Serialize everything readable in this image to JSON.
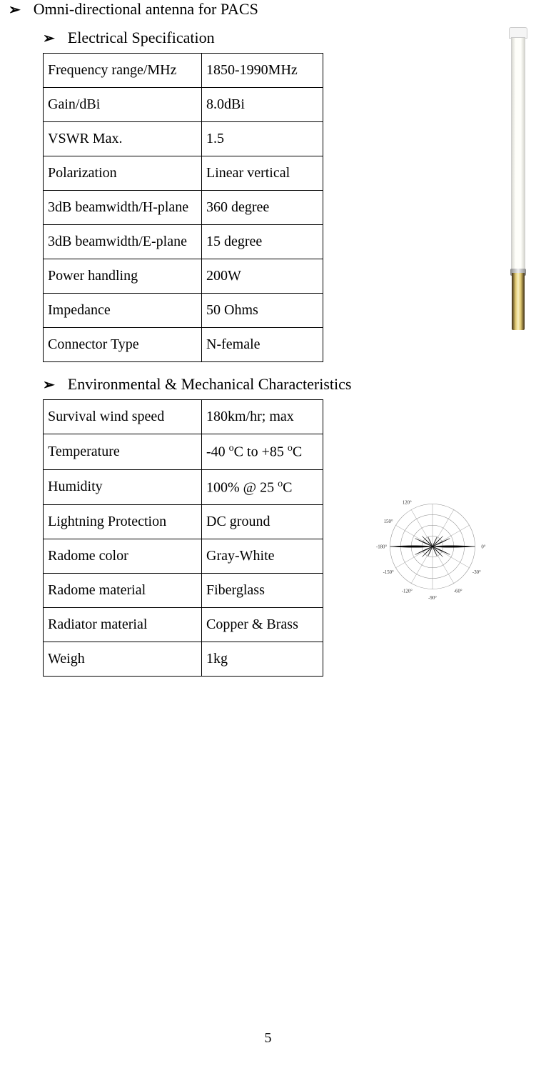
{
  "title": "Omni-directional antenna for PACS",
  "section1": {
    "heading": "Electrical Specification",
    "rows": [
      {
        "label": "Frequency range/MHz",
        "value": "1850-1990MHz"
      },
      {
        "label": "Gain/dBi",
        "value": "8.0dBi"
      },
      {
        "label": "VSWR Max.",
        "value": "1.5"
      },
      {
        "label": "Polarization",
        "value": "Linear vertical"
      },
      {
        "label": "3dB beamwidth/H-plane",
        "value": "360 degree"
      },
      {
        "label": "3dB beamwidth/E-plane",
        "value": "15 degree"
      },
      {
        "label": "Power handling",
        "value": "200W"
      },
      {
        "label": "Impedance",
        "value": "50 Ohms"
      },
      {
        "label": "Connector Type",
        "value": "N-female"
      }
    ]
  },
  "section2": {
    "heading": "Environmental & Mechanical Characteristics",
    "rows": [
      {
        "label": "Survival wind speed",
        "value": "180km/hr; max"
      },
      {
        "label": "Temperature",
        "value_html": "-40 <sup>o</sup>C to +85 <sup>o</sup>C"
      },
      {
        "label": "Humidity",
        "value_html": "100% @ 25 <sup>o</sup>C"
      },
      {
        "label": "Lightning Protection",
        "value": "DC ground"
      },
      {
        "label": "Radome color",
        "value": "Gray-White"
      },
      {
        "label": "Radome material",
        "value": "Fiberglass"
      },
      {
        "label": "Radiator material",
        "value": "Copper & Brass"
      },
      {
        "label": "Weigh",
        "value": "1kg"
      }
    ]
  },
  "page_number": "5",
  "arrow_glyph": "➢",
  "pattern_diagram": {
    "type": "polar-radiation-pattern",
    "angle_labels": [
      "0°",
      "-30°",
      "-60°",
      "-90°",
      "-120°",
      "-150°",
      "-180°",
      "150°",
      "120°"
    ],
    "label_fontsize": 8,
    "grid_rings": 4,
    "grid_color": "#888888",
    "lobe_color": "#000000",
    "background_color": "#ffffff",
    "main_lobes": [
      {
        "angle_deg": 0,
        "relative_length": 1.0,
        "width_deg": 14
      },
      {
        "angle_deg": 180,
        "relative_length": 1.0,
        "width_deg": 14
      }
    ],
    "side_lobes": [
      {
        "angle_deg": 25,
        "relative_length": 0.45
      },
      {
        "angle_deg": -25,
        "relative_length": 0.45
      },
      {
        "angle_deg": 45,
        "relative_length": 0.35
      },
      {
        "angle_deg": -45,
        "relative_length": 0.35
      },
      {
        "angle_deg": 65,
        "relative_length": 0.25
      },
      {
        "angle_deg": -65,
        "relative_length": 0.25
      },
      {
        "angle_deg": 155,
        "relative_length": 0.45
      },
      {
        "angle_deg": -155,
        "relative_length": 0.45
      },
      {
        "angle_deg": 135,
        "relative_length": 0.35
      },
      {
        "angle_deg": -135,
        "relative_length": 0.35
      },
      {
        "angle_deg": 115,
        "relative_length": 0.25
      },
      {
        "angle_deg": -115,
        "relative_length": 0.25
      }
    ]
  },
  "antenna_image": {
    "type": "product-photo",
    "description": "Vertical omni-directional fiberglass antenna",
    "radome_color": "#f5f5ed",
    "connector_color": "#b89030",
    "cap_color": "#f0f0f0"
  }
}
